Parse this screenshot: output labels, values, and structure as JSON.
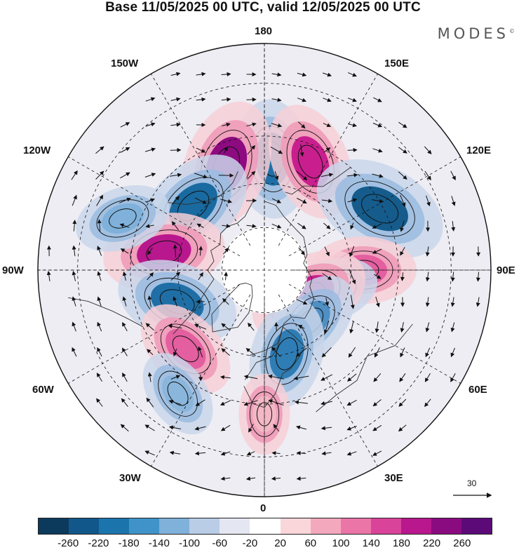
{
  "title": "Base 11/05/2025 00 UTC, valid 12/05/2025 00 UTC",
  "brand": "MODES",
  "brand_mark": "©",
  "longitude_labels": {
    "lon_180": "180",
    "lon_150E": "150E",
    "lon_120E": "120E",
    "lon_90E": "90E",
    "lon_60E": "60E",
    "lon_30E": "30E",
    "lon_0": "0",
    "lon_30W": "30W",
    "lon_60W": "60W",
    "lon_90W": "90W",
    "lon_120W": "120W",
    "lon_150W": "150W"
  },
  "reference_vector": "30",
  "colorbar": {
    "colors": [
      "#0c3a5c",
      "#12578a",
      "#1c74ad",
      "#3f93c8",
      "#7fb1da",
      "#b9cde6",
      "#e4e6f2",
      "#ffffff",
      "#fad6da",
      "#f4a8bd",
      "#ea75a6",
      "#d9439a",
      "#b8178d",
      "#8a0b80",
      "#5b0a78"
    ],
    "ticks": [
      "-260",
      "-220",
      "-180",
      "-140",
      "-100",
      "-60",
      "-20",
      "20",
      "60",
      "100",
      "140",
      "180",
      "220",
      "260"
    ]
  },
  "field": {
    "projection": "north polar stereographic",
    "quantity_cells": "anomaly blobs",
    "blobs": [
      {
        "lon": 176,
        "lat": 52,
        "value": -190,
        "color": "#1f6fa6"
      },
      {
        "lon": 157,
        "lat": 50,
        "value": 190,
        "color": "#c91f8e"
      },
      {
        "lon": 118,
        "lat": 46,
        "value": -240,
        "color": "#155c8c"
      },
      {
        "lon": 90,
        "lat": 56,
        "value": 150,
        "color": "#e35fa0"
      },
      {
        "lon": 73,
        "lat": 66,
        "value": -120,
        "color": "#8bb6dc"
      },
      {
        "lon": 60,
        "lat": 72,
        "value": 200,
        "color": "#c51f8b"
      },
      {
        "lon": 42,
        "lat": 66,
        "value": -150,
        "color": "#4f8fc4"
      },
      {
        "lon": 15,
        "lat": 60,
        "value": -170,
        "color": "#2f7db5"
      },
      {
        "lon": -160,
        "lat": 52,
        "value": 230,
        "color": "#8d0a80"
      },
      {
        "lon": -132,
        "lat": 57,
        "value": -210,
        "color": "#196aa0"
      },
      {
        "lon": -100,
        "lat": 55,
        "value": 200,
        "color": "#b8178d"
      },
      {
        "lon": -110,
        "lat": 40,
        "value": -120,
        "color": "#7fb1da"
      },
      {
        "lon": -70,
        "lat": 58,
        "value": -200,
        "color": "#1f6fa6"
      },
      {
        "lon": -45,
        "lat": 52,
        "value": 150,
        "color": "#e35fa0"
      },
      {
        "lon": -35,
        "lat": 40,
        "value": -100,
        "color": "#8bb6dc"
      },
      {
        "lon": 0,
        "lat": 42,
        "value": 70,
        "color": "#f4b8c5"
      }
    ]
  }
}
